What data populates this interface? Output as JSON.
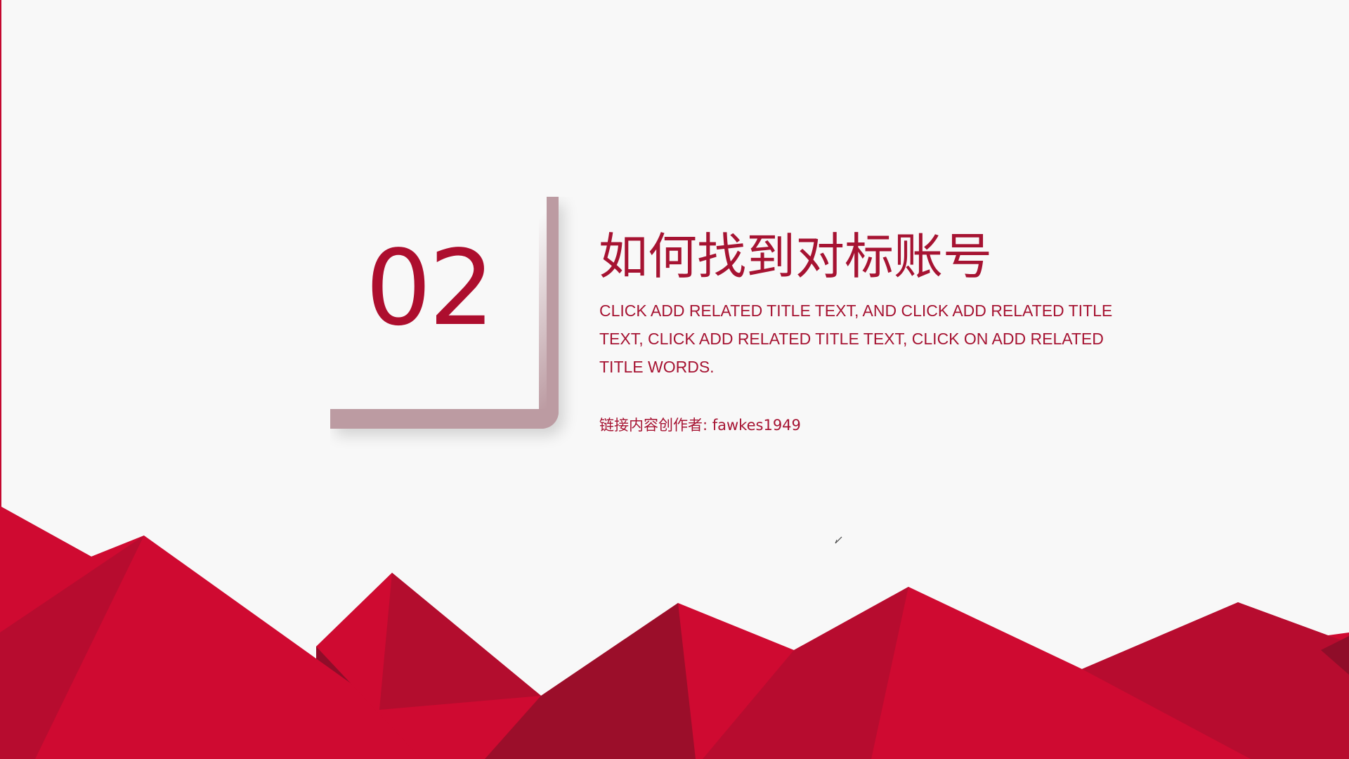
{
  "slide": {
    "number": "02",
    "title": "如何找到对标账号",
    "subtitle": "CLICK ADD RELATED TITLE TEXT, AND CLICK ADD RELATED TITLE TEXT, CLICK ADD RELATED TITLE TEXT, CLICK ON ADD RELATED TITLE WORDS.",
    "author": "链接内容创作者: fawkes1949"
  },
  "colors": {
    "accent": "#ad0e2e",
    "card_shadow": "#bc9ba2",
    "mountain_primary": "#cf0a31",
    "mountain_dark": "#9b0e2a",
    "background": "#f8f8f8"
  },
  "icons": {
    "cursor": "pen-cursor-icon"
  }
}
